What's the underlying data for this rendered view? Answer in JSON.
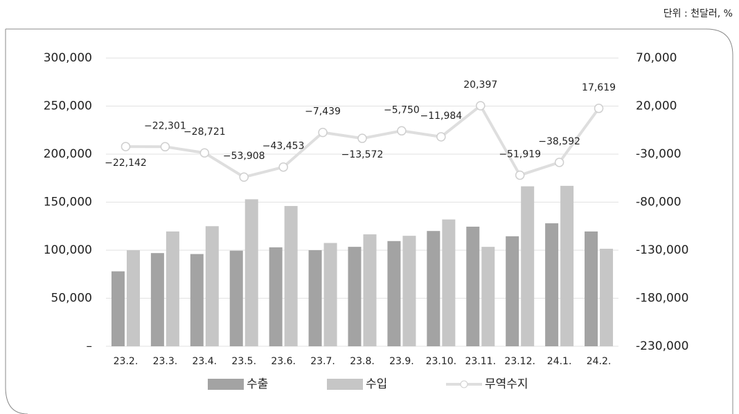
{
  "chart_data": {
    "type": "bar-line",
    "unit_note": "단위 : 천달러, %",
    "categories": [
      "23.2.",
      "23.3.",
      "23.4.",
      "23.5.",
      "23.6.",
      "23.7.",
      "23.8.",
      "23.9.",
      "23.10.",
      "23.11.",
      "23.12.",
      "24.1.",
      "24.2."
    ],
    "series": [
      {
        "name": "수출",
        "type": "bar",
        "color": "#a3a3a3",
        "values": [
          78000,
          97000,
          96000,
          99500,
          103000,
          100000,
          103500,
          109500,
          120000,
          124500,
          114500,
          128000,
          119500
        ]
      },
      {
        "name": "수입",
        "type": "bar",
        "color": "#c6c6c6",
        "values": [
          100000,
          119500,
          125000,
          153000,
          146000,
          107500,
          116500,
          115000,
          132000,
          103500,
          166500,
          167000,
          101500
        ]
      },
      {
        "name": "무역수지",
        "type": "line",
        "axis": "y2",
        "color": "#dedede",
        "values": [
          -22142,
          -22301,
          -28721,
          -53908,
          -43453,
          -7439,
          -13572,
          -5750,
          -11984,
          20397,
          -51919,
          -38592,
          17619
        ],
        "value_labels": [
          "−22,142",
          "−22,301",
          "−28,721",
          "−53,908",
          "−43,453",
          "−7,439",
          "−13,572",
          "−5,750",
          "−11,984",
          "20,397",
          "−51,919",
          "−38,592",
          "17,619"
        ]
      }
    ],
    "ylim": [
      0,
      300000
    ],
    "yticks": [
      {
        "value": 0,
        "label": "–"
      },
      {
        "value": 50000,
        "label": "50,000"
      },
      {
        "value": 100000,
        "label": "100,000"
      },
      {
        "value": 150000,
        "label": "150,000"
      },
      {
        "value": 200000,
        "label": "200,000"
      },
      {
        "value": 250000,
        "label": "250,000"
      },
      {
        "value": 300000,
        "label": "300,000"
      }
    ],
    "y2lim": [
      -230000,
      70000
    ],
    "y2ticks": [
      {
        "value": -230000,
        "label": "-230,000"
      },
      {
        "value": -180000,
        "label": "-180,000"
      },
      {
        "value": -130000,
        "label": "-130,000"
      },
      {
        "value": -80000,
        "label": "-80,000"
      },
      {
        "value": -30000,
        "label": "-30,000"
      },
      {
        "value": 20000,
        "label": "20,000"
      },
      {
        "value": 70000,
        "label": "70,000"
      }
    ],
    "grid": true
  }
}
